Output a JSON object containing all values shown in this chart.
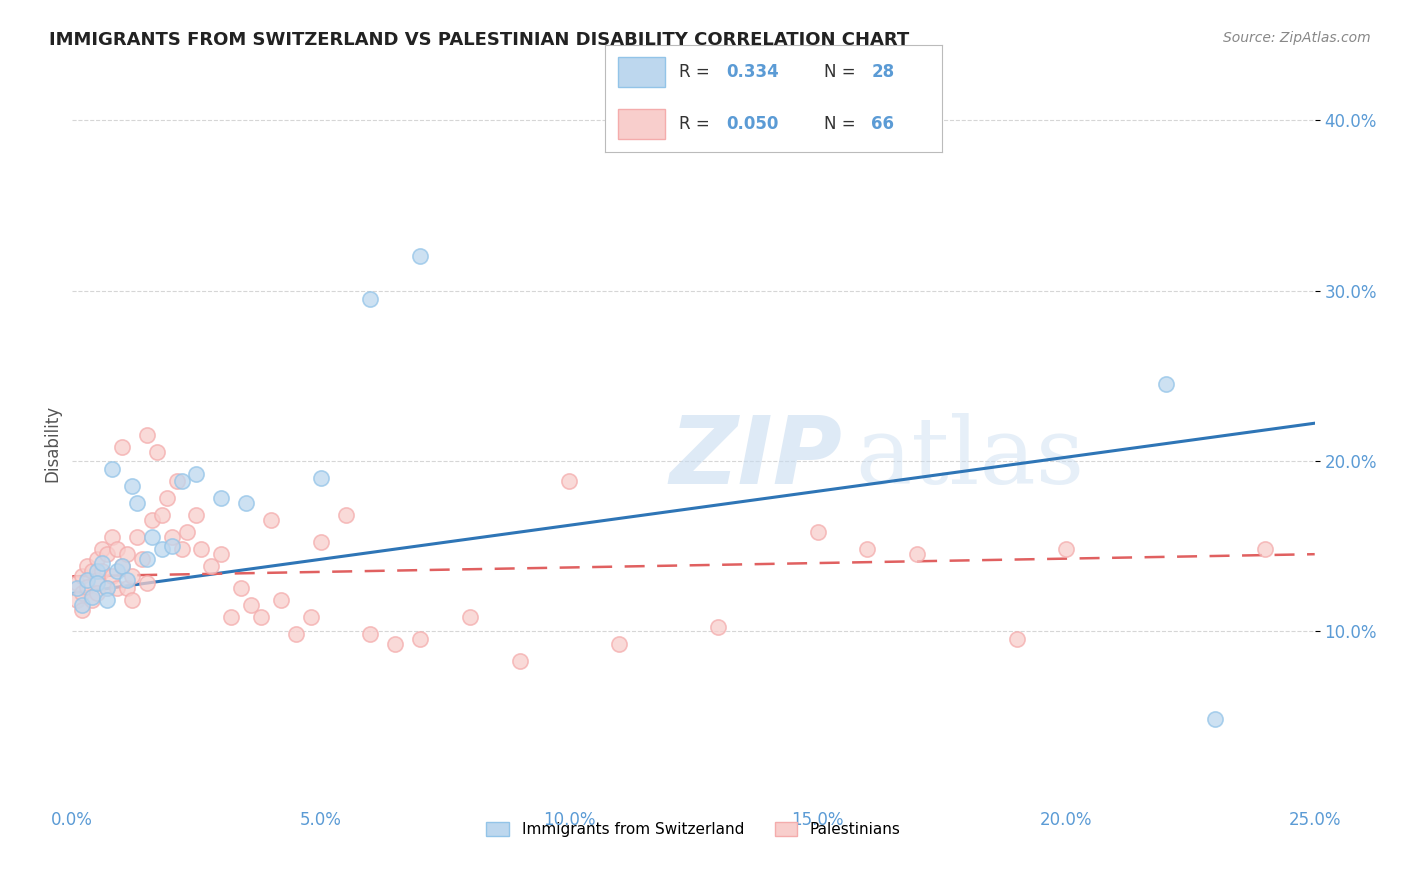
{
  "title": "IMMIGRANTS FROM SWITZERLAND VS PALESTINIAN DISABILITY CORRELATION CHART",
  "source": "Source: ZipAtlas.com",
  "ylabel": "Disability",
  "xlim": [
    0.0,
    0.25
  ],
  "ylim": [
    0.0,
    0.42
  ],
  "xticks": [
    0.0,
    0.05,
    0.1,
    0.15,
    0.2,
    0.25
  ],
  "xticklabels": [
    "0.0%",
    "5.0%",
    "10.0%",
    "15.0%",
    "20.0%",
    "25.0%"
  ],
  "yticks": [
    0.1,
    0.2,
    0.3,
    0.4
  ],
  "yticklabels": [
    "10.0%",
    "20.0%",
    "30.0%",
    "40.0%"
  ],
  "legend_R1": "R = 0.334",
  "legend_N1": "N = 28",
  "legend_R2": "R = 0.050",
  "legend_N2": "N = 66",
  "color_blue": "#93C4E8",
  "color_blue_fill": "#BDD7EE",
  "color_pink": "#F4ACAC",
  "color_pink_fill": "#F8CECC",
  "color_blue_line": "#2E75B6",
  "color_pink_line": "#E06060",
  "color_axis_labels": "#5B9BD5",
  "blue_scatter_x": [
    0.001,
    0.002,
    0.003,
    0.004,
    0.005,
    0.005,
    0.006,
    0.007,
    0.007,
    0.008,
    0.009,
    0.01,
    0.011,
    0.012,
    0.013,
    0.015,
    0.016,
    0.018,
    0.02,
    0.022,
    0.025,
    0.03,
    0.035,
    0.05,
    0.06,
    0.07,
    0.22,
    0.23
  ],
  "blue_scatter_y": [
    0.125,
    0.115,
    0.13,
    0.12,
    0.135,
    0.128,
    0.14,
    0.125,
    0.118,
    0.195,
    0.135,
    0.138,
    0.13,
    0.185,
    0.175,
    0.142,
    0.155,
    0.148,
    0.15,
    0.188,
    0.192,
    0.178,
    0.175,
    0.19,
    0.295,
    0.32,
    0.245,
    0.048
  ],
  "pink_scatter_x": [
    0.001,
    0.001,
    0.002,
    0.002,
    0.002,
    0.003,
    0.003,
    0.004,
    0.004,
    0.005,
    0.005,
    0.005,
    0.006,
    0.006,
    0.007,
    0.007,
    0.008,
    0.008,
    0.009,
    0.009,
    0.01,
    0.01,
    0.011,
    0.011,
    0.012,
    0.012,
    0.013,
    0.014,
    0.015,
    0.015,
    0.016,
    0.017,
    0.018,
    0.019,
    0.02,
    0.021,
    0.022,
    0.023,
    0.025,
    0.026,
    0.028,
    0.03,
    0.032,
    0.034,
    0.036,
    0.038,
    0.04,
    0.042,
    0.045,
    0.048,
    0.05,
    0.055,
    0.06,
    0.065,
    0.07,
    0.08,
    0.09,
    0.1,
    0.11,
    0.13,
    0.15,
    0.16,
    0.17,
    0.19,
    0.2,
    0.24
  ],
  "pink_scatter_y": [
    0.128,
    0.118,
    0.132,
    0.122,
    0.112,
    0.138,
    0.126,
    0.135,
    0.118,
    0.142,
    0.13,
    0.122,
    0.148,
    0.135,
    0.145,
    0.125,
    0.155,
    0.132,
    0.148,
    0.125,
    0.208,
    0.138,
    0.145,
    0.125,
    0.132,
    0.118,
    0.155,
    0.142,
    0.215,
    0.128,
    0.165,
    0.205,
    0.168,
    0.178,
    0.155,
    0.188,
    0.148,
    0.158,
    0.168,
    0.148,
    0.138,
    0.145,
    0.108,
    0.125,
    0.115,
    0.108,
    0.165,
    0.118,
    0.098,
    0.108,
    0.152,
    0.168,
    0.098,
    0.092,
    0.095,
    0.108,
    0.082,
    0.188,
    0.092,
    0.102,
    0.158,
    0.148,
    0.145,
    0.095,
    0.148,
    0.148
  ],
  "blue_trend_x": [
    0.0,
    0.25
  ],
  "blue_trend_y": [
    0.122,
    0.222
  ],
  "pink_trend_x": [
    0.0,
    0.25
  ],
  "pink_trend_y": [
    0.132,
    0.145
  ]
}
